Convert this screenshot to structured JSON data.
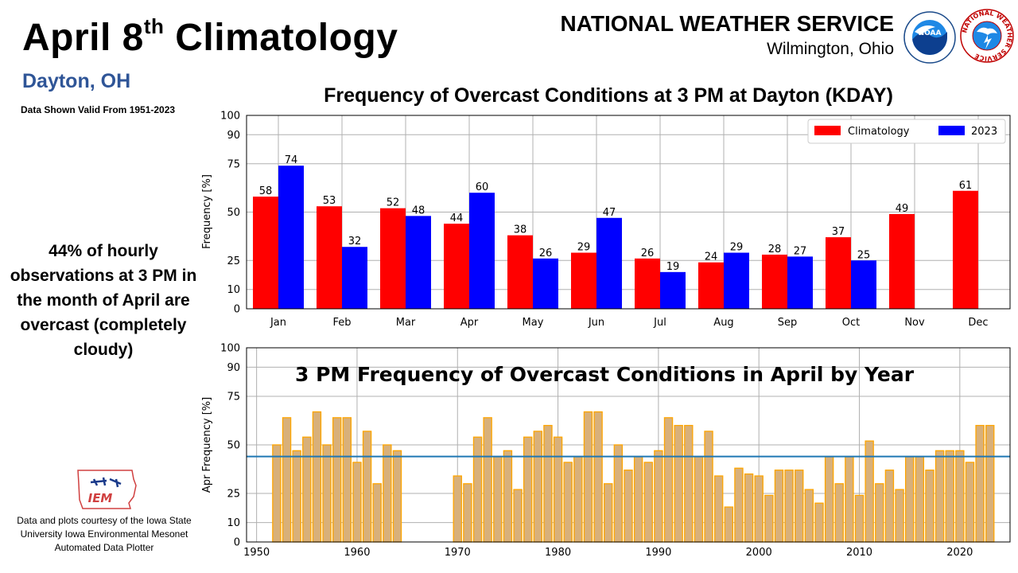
{
  "header": {
    "title_main": "April 8",
    "title_sup": "th",
    "title_rest": " Climatology",
    "location": "Dayton, OH",
    "valid_range": "Data Shown Valid From 1951-2023",
    "agency": "NATIONAL WEATHER SERVICE",
    "office": "Wilmington, Ohio"
  },
  "logos": {
    "noaa_text": "NOAA",
    "nws_ring_text": "NATIONAL WEATHER SERVICE",
    "iem_text": "IEM"
  },
  "sidebar": {
    "note": "44% of hourly observations at 3 PM in the month of April are overcast (completely cloudy)",
    "credit": "Data and plots courtesy of the Iowa State University Iowa Environmental Mesonet Automated Data Plotter"
  },
  "colors": {
    "climatology": "#ff0000",
    "year2023": "#0000ff",
    "yearly_fill": "#d8b07a",
    "yearly_edge": "#ffa500",
    "mean_line": "#1f77b4",
    "location": "#2f5597"
  },
  "chart_data": [
    {
      "type": "bar",
      "title": "Frequency of Overcast Conditions at 3 PM at Dayton (KDAY)",
      "xlabel": "",
      "ylabel": "Frequency [%]",
      "ylim": [
        0,
        100
      ],
      "yticks": [
        0,
        10,
        25,
        50,
        75,
        90,
        100
      ],
      "grid": true,
      "legend": "top-right",
      "categories": [
        "Jan",
        "Feb",
        "Mar",
        "Apr",
        "May",
        "Jun",
        "Jul",
        "Aug",
        "Sep",
        "Oct",
        "Nov",
        "Dec"
      ],
      "series": [
        {
          "name": "Climatology",
          "values": [
            58,
            53,
            52,
            44,
            38,
            29,
            26,
            24,
            28,
            37,
            49,
            61
          ]
        },
        {
          "name": "2023",
          "values": [
            74,
            32,
            48,
            60,
            26,
            47,
            19,
            29,
            27,
            25,
            null,
            null
          ]
        }
      ]
    },
    {
      "type": "bar",
      "title": "3 PM Frequency of Overcast Conditions in April by Year",
      "xlabel": "",
      "ylabel": "Apr Frequency [%]",
      "ylim": [
        0,
        100
      ],
      "xlim": [
        1949,
        2025
      ],
      "yticks": [
        0,
        10,
        25,
        50,
        75,
        90,
        100
      ],
      "xticks": [
        1950,
        1960,
        1970,
        1980,
        1990,
        2000,
        2010,
        2020
      ],
      "grid": true,
      "mean_line": 44,
      "x": [
        1952,
        1953,
        1954,
        1955,
        1956,
        1957,
        1958,
        1959,
        1960,
        1961,
        1962,
        1963,
        1964,
        1970,
        1971,
        1972,
        1973,
        1974,
        1975,
        1976,
        1977,
        1978,
        1979,
        1980,
        1981,
        1982,
        1983,
        1984,
        1985,
        1986,
        1987,
        1988,
        1989,
        1990,
        1991,
        1992,
        1993,
        1994,
        1995,
        1996,
        1997,
        1998,
        1999,
        2000,
        2001,
        2002,
        2003,
        2004,
        2005,
        2006,
        2007,
        2008,
        2009,
        2010,
        2011,
        2012,
        2013,
        2014,
        2015,
        2016,
        2017,
        2018,
        2019,
        2020,
        2021,
        2022,
        2023
      ],
      "values": [
        50,
        64,
        47,
        54,
        67,
        50,
        64,
        64,
        41,
        57,
        30,
        50,
        47,
        34,
        30,
        54,
        64,
        44,
        47,
        27,
        54,
        57,
        60,
        54,
        41,
        44,
        67,
        67,
        30,
        50,
        37,
        44,
        41,
        47,
        64,
        60,
        60,
        44,
        57,
        34,
        18,
        38,
        35,
        34,
        24,
        37,
        37,
        37,
        27,
        20,
        44,
        30,
        44,
        24,
        52,
        30,
        37,
        27,
        44,
        44,
        37,
        47,
        47,
        47,
        41,
        60,
        60
      ]
    }
  ]
}
